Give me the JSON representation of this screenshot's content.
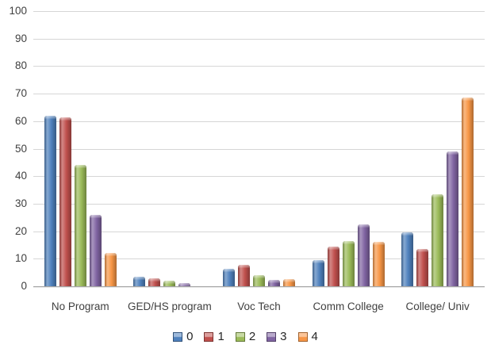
{
  "chart_data": {
    "type": "bar",
    "title": "",
    "xlabel": "",
    "ylabel": "",
    "categories": [
      "No Program",
      "GED/HS program",
      "Voc Tech",
      "Comm College",
      "College/ Univ"
    ],
    "series": [
      {
        "name": "0",
        "color": "#4F81BD",
        "values": [
          62,
          3.5,
          6.3,
          9.5,
          19.5
        ]
      },
      {
        "name": "1",
        "color": "#C0504D",
        "values": [
          61.5,
          3,
          7.7,
          14.5,
          13.5
        ]
      },
      {
        "name": "2",
        "color": "#9BBB59",
        "values": [
          44,
          2,
          4,
          16.5,
          33.5
        ]
      },
      {
        "name": "3",
        "color": "#8064A2",
        "values": [
          26,
          1.2,
          2.4,
          22.5,
          49
        ]
      },
      {
        "name": "4",
        "color": "#F79646",
        "values": [
          12,
          0,
          2.5,
          16,
          68.5
        ]
      }
    ],
    "ylim": [
      0,
      100
    ],
    "yticks": [
      0,
      10,
      20,
      30,
      40,
      50,
      60,
      70,
      80,
      90,
      100
    ],
    "grid": true,
    "legend_position": "bottom",
    "colors": {
      "background": "#FFFFFF",
      "gridline": "#D6D6D6",
      "axis_line": "#A6A6A6",
      "tick_text": "#3F3F3F",
      "legend_text": "#262626"
    }
  }
}
